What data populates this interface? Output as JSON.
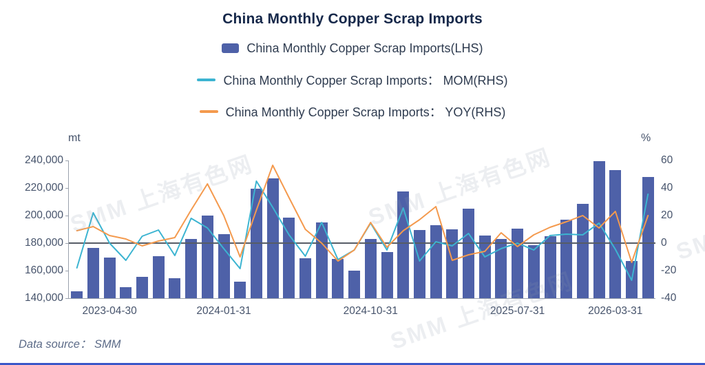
{
  "title": "China Monthly Copper Scrap Imports",
  "legend": [
    {
      "label": "China Monthly Copper Scrap Imports(LHS)",
      "color": "#4e61a8",
      "marker": "rect"
    },
    {
      "label": "China Monthly Copper Scrap Imports： MOM(RHS)",
      "color": "#3cb4d1",
      "marker": "line"
    },
    {
      "label": "China Monthly Copper Scrap Imports： YOY(RHS)",
      "color": "#f49a4e",
      "marker": "line"
    }
  ],
  "axes": {
    "left_unit": "mt",
    "right_unit": "%",
    "left_tick_labels": [
      "240,000",
      "220,000",
      "200,000",
      "180,000",
      "160,000",
      "140,000"
    ],
    "right_tick_labels": [
      "60",
      "40",
      "20",
      "0",
      "-20",
      "-40"
    ]
  },
  "watermark": {
    "text": "SMM 上海有色网"
  },
  "footer": {
    "data_source": "Data source： SMM"
  },
  "chart_data": {
    "type": "bar",
    "combo": "bar+line",
    "n_points": 36,
    "x_tick_labels": [
      {
        "label": "2023-04-30",
        "index": 2
      },
      {
        "label": "2024-01-31",
        "index": 9
      },
      {
        "label": "2024-10-31",
        "index": 18
      },
      {
        "label": "2025-07-31",
        "index": 27
      },
      {
        "label": "2026-03-31",
        "index": 33
      }
    ],
    "left_axis": {
      "min": 140000,
      "max": 240000,
      "step": 20000,
      "unit": "mt"
    },
    "right_axis": {
      "min": -40,
      "max": 60,
      "step": 20,
      "unit": "%",
      "zero_line": 0
    },
    "series": [
      {
        "name": "China Monthly Copper Scrap Imports(LHS)",
        "type": "bar",
        "axis": "left",
        "color": "#4e61a8",
        "values": [
          145000,
          176500,
          169500,
          148000,
          155500,
          170500,
          154500,
          183000,
          200000,
          186500,
          152000,
          219500,
          227000,
          198500,
          169000,
          195000,
          168500,
          160000,
          183000,
          173500,
          217500,
          189500,
          193000,
          190000,
          205000,
          185500,
          183000,
          190500,
          178500,
          185000,
          197000,
          208500,
          239500,
          233000,
          167000,
          228000
        ]
      },
      {
        "name": "China Monthly Copper Scrap Imports： MOM(RHS)",
        "type": "line",
        "axis": "right",
        "color": "#3cb4d1",
        "values": [
          -18,
          22,
          0,
          -12.5,
          5,
          9.5,
          -9,
          18,
          11,
          -4,
          -18.5,
          45,
          26,
          6,
          -9.5,
          15,
          -12,
          -5,
          14.5,
          -5,
          25.5,
          -13,
          1,
          -2,
          7,
          -10,
          -4,
          0,
          -5,
          5.5,
          6.5,
          6,
          14.5,
          -4.5,
          -27,
          35.5
        ]
      },
      {
        "name": "China Monthly Copper Scrap Imports： YOY(RHS)",
        "type": "line",
        "axis": "right",
        "color": "#f49a4e",
        "values": [
          9,
          12,
          5.5,
          3,
          -2,
          1.5,
          4,
          24,
          43,
          20,
          -10,
          24,
          56.5,
          33,
          10,
          0,
          -13,
          -5,
          15,
          -3,
          9,
          17,
          26.5,
          -12.5,
          -8.5,
          -6,
          7.5,
          -2.5,
          6,
          11.5,
          15.5,
          20,
          11,
          23,
          -14,
          20
        ]
      }
    ]
  }
}
